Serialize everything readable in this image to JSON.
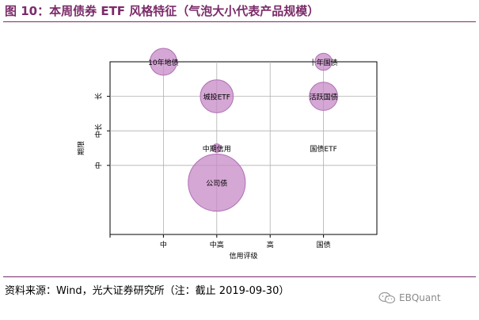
{
  "header": {
    "title": "图 10：本周债券 ETF 风格特征（气泡大小代表产品规模）"
  },
  "chart_data": {
    "type": "scatter",
    "xlabel": "信用评级",
    "ylabel": "期限",
    "x_categories": [
      "中",
      "中高",
      "高",
      "国债"
    ],
    "y_categories": [
      "中",
      "中长",
      "长"
    ],
    "xlim": [
      0,
      5
    ],
    "ylim": [
      0,
      5
    ],
    "grid": true,
    "points": [
      {
        "label": "10年地债",
        "x": 1,
        "y": 5,
        "size": 1
      },
      {
        "label": "城投ETF",
        "x": 2,
        "y": 4,
        "size": 1.5
      },
      {
        "label": "中期信用",
        "x": 2,
        "y": 2.5,
        "size": 0.1
      },
      {
        "label": "公司债",
        "x": 2,
        "y": 1.5,
        "size": 4.5
      },
      {
        "label": "十年国债",
        "x": 4,
        "y": 5,
        "size": 0.4
      },
      {
        "label": "活跃国债",
        "x": 4,
        "y": 4,
        "size": 1.1
      },
      {
        "label": "国债ETF",
        "x": 4,
        "y": 2.5,
        "size": 0
      }
    ],
    "bubble_color": "#c58ac5",
    "bubble_edge": "#b070b4"
  },
  "footer": {
    "source": "资料来源：Wind，光大证券研究所（注：截止 2019-09-30）",
    "watermark": "EBQuant"
  }
}
